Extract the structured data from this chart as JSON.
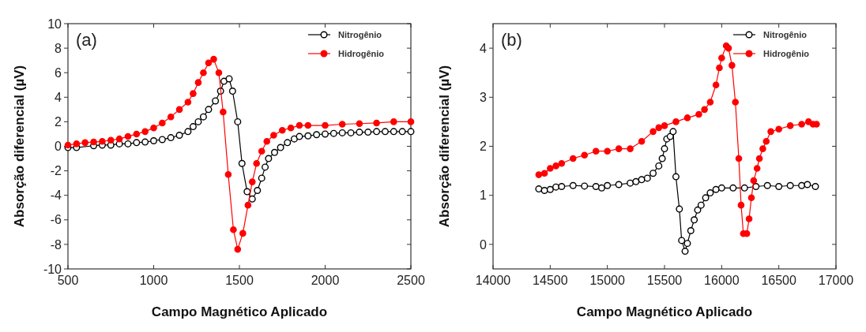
{
  "chart_data": [
    {
      "type": "line",
      "annotations": [
        "(a)"
      ],
      "xlabel": "Campo Magnético Aplicado",
      "ylabel": "Absorção diferencial (µV)",
      "xlim": [
        500,
        2500
      ],
      "xticks": [
        500,
        1000,
        1500,
        2000,
        2500
      ],
      "ylim": [
        -10,
        10
      ],
      "yticks": [
        -10,
        -8,
        -6,
        -4,
        -2,
        0,
        2,
        4,
        6,
        8,
        10
      ],
      "legend": "top right",
      "marker": "circle",
      "line_style": "solid",
      "series": [
        {
          "name": "Nitrogênio",
          "color": "#000000",
          "x": [
            500,
            550,
            650,
            700,
            750,
            800,
            850,
            900,
            950,
            1000,
            1050,
            1100,
            1150,
            1200,
            1230,
            1260,
            1290,
            1320,
            1360,
            1390,
            1410,
            1440,
            1460,
            1490,
            1515,
            1545,
            1575,
            1605,
            1630,
            1650,
            1670,
            1705,
            1740,
            1780,
            1820,
            1850,
            1900,
            1950,
            2000,
            2050,
            2100,
            2150,
            2200,
            2250,
            2300,
            2350,
            2400,
            2450,
            2500
          ],
          "values": [
            -0.1,
            -0.1,
            0.05,
            0.1,
            0.1,
            0.2,
            0.2,
            0.3,
            0.35,
            0.45,
            0.55,
            0.7,
            0.9,
            1.2,
            1.6,
            2.0,
            2.4,
            3.0,
            3.7,
            4.5,
            5.3,
            5.5,
            4.5,
            2.0,
            -1.4,
            -3.7,
            -4.3,
            -3.6,
            -2.6,
            -1.7,
            -1.0,
            -0.5,
            -0.1,
            0.3,
            0.6,
            0.8,
            0.85,
            0.95,
            1.0,
            1.05,
            1.1,
            1.1,
            1.15,
            1.15,
            1.2,
            1.2,
            1.2,
            1.2,
            1.2
          ]
        },
        {
          "name": "Hidrogênio",
          "color": "#ff0000",
          "x": [
            500,
            550,
            600,
            650,
            700,
            750,
            800,
            850,
            900,
            950,
            1000,
            1050,
            1100,
            1150,
            1200,
            1230,
            1260,
            1290,
            1320,
            1350,
            1380,
            1405,
            1435,
            1465,
            1490,
            1520,
            1550,
            1575,
            1600,
            1630,
            1660,
            1700,
            1750,
            1800,
            1850,
            1900,
            2000,
            2100,
            2200,
            2300,
            2400,
            2500
          ],
          "values": [
            0.1,
            0.2,
            0.3,
            0.35,
            0.4,
            0.5,
            0.6,
            0.8,
            1.0,
            1.2,
            1.5,
            1.9,
            2.4,
            3.0,
            3.6,
            4.3,
            5.2,
            6.0,
            6.8,
            7.1,
            6.0,
            2.8,
            -2.3,
            -6.8,
            -8.4,
            -7.1,
            -4.8,
            -2.9,
            -1.4,
            -0.4,
            0.4,
            0.9,
            1.3,
            1.5,
            1.7,
            1.7,
            1.7,
            1.8,
            1.85,
            1.9,
            2.0,
            2.0
          ]
        }
      ]
    },
    {
      "type": "line",
      "annotations": [
        "(b)"
      ],
      "xlabel": "Campo Magnético Aplicado",
      "ylabel": "Absorção diferencial (µV)",
      "xlim": [
        14000,
        17000
      ],
      "xticks": [
        14000,
        14500,
        15000,
        15500,
        16000,
        16500,
        17000
      ],
      "ylim": [
        -0.5,
        4.5
      ],
      "yticks": [
        0,
        1,
        2,
        3,
        4
      ],
      "legend": "top right",
      "marker": "circle",
      "line_style": "solid",
      "series": [
        {
          "name": "Nitrogênio",
          "color": "#000000",
          "x": [
            14400,
            14450,
            14500,
            14550,
            14600,
            14700,
            14800,
            14900,
            14950,
            15000,
            15100,
            15200,
            15250,
            15300,
            15350,
            15400,
            15450,
            15480,
            15500,
            15520,
            15550,
            15575,
            15600,
            15630,
            15650,
            15680,
            15700,
            15730,
            15760,
            15790,
            15820,
            15860,
            15900,
            15950,
            16000,
            16100,
            16200,
            16300,
            16400,
            16500,
            16600,
            16700,
            16750,
            16820
          ],
          "values": [
            1.13,
            1.1,
            1.12,
            1.17,
            1.18,
            1.2,
            1.19,
            1.18,
            1.15,
            1.2,
            1.22,
            1.25,
            1.28,
            1.32,
            1.35,
            1.45,
            1.6,
            1.75,
            1.95,
            2.15,
            2.2,
            2.3,
            1.38,
            0.72,
            0.08,
            -0.14,
            0.02,
            0.28,
            0.5,
            0.7,
            0.8,
            0.95,
            1.05,
            1.12,
            1.15,
            1.15,
            1.15,
            1.18,
            1.2,
            1.18,
            1.2,
            1.2,
            1.22,
            1.18
          ]
        },
        {
          "name": "Hidrogênio",
          "color": "#ff0000",
          "x": [
            14400,
            14450,
            14500,
            14550,
            14600,
            14700,
            14800,
            14900,
            15000,
            15100,
            15200,
            15300,
            15400,
            15450,
            15500,
            15600,
            15700,
            15800,
            15850,
            15900,
            15950,
            15980,
            16000,
            16040,
            16060,
            16090,
            16120,
            16150,
            16170,
            16190,
            16220,
            16240,
            16260,
            16280,
            16310,
            16330,
            16360,
            16390,
            16430,
            16500,
            16600,
            16700,
            16760,
            16800,
            16830
          ],
          "values": [
            1.42,
            1.45,
            1.55,
            1.6,
            1.65,
            1.75,
            1.82,
            1.9,
            1.9,
            1.95,
            1.95,
            2.1,
            2.3,
            2.38,
            2.42,
            2.5,
            2.58,
            2.65,
            2.75,
            2.9,
            3.25,
            3.6,
            3.8,
            4.05,
            4.0,
            3.65,
            2.9,
            1.75,
            0.8,
            0.22,
            0.22,
            0.52,
            0.95,
            1.3,
            1.55,
            1.75,
            1.95,
            2.1,
            2.3,
            2.35,
            2.42,
            2.45,
            2.5,
            2.45,
            2.45
          ]
        }
      ]
    }
  ]
}
